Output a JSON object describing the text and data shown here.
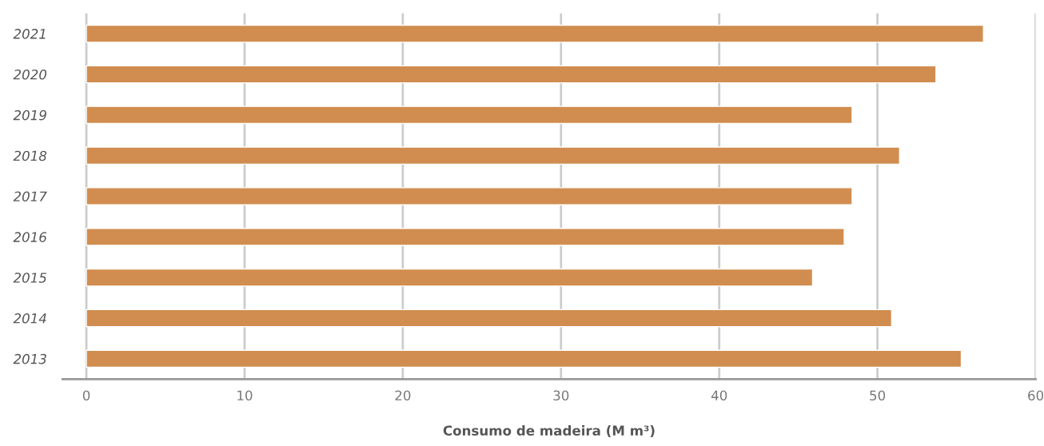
{
  "chart_data": {
    "type": "bar",
    "orientation": "horizontal",
    "xlabel": "Consumo de madeira (M m³)",
    "categories": [
      "2021",
      "2020",
      "2019",
      "2018",
      "2017",
      "2016",
      "2015",
      "2014",
      "2013"
    ],
    "values": [
      56.7,
      53.7,
      48.4,
      51.4,
      48.4,
      47.9,
      45.9,
      50.9,
      55.3
    ],
    "color": "#d18d4f",
    "xlim": [
      -1.5,
      60
    ],
    "xticks": [
      0,
      10,
      20,
      30,
      40,
      50,
      60
    ],
    "grid": "x",
    "legend": false
  }
}
